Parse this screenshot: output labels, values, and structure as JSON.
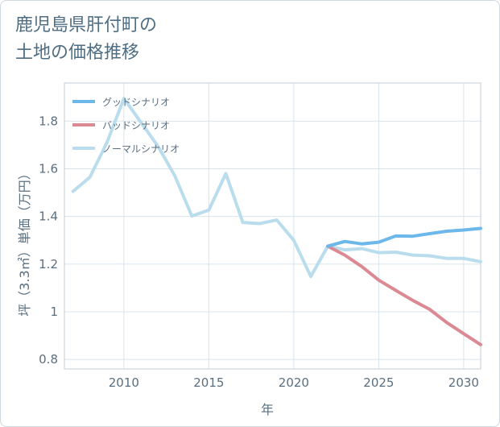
{
  "title_line1": "鹿児島県肝付町の",
  "title_line2": "土地の価格推移",
  "chart_data": {
    "type": "line",
    "title": "鹿児島県肝付町の土地の価格推移",
    "xlabel": "年",
    "ylabel": "坪（3.3㎡）単価（万円）",
    "xlim": [
      2006.5,
      2031
    ],
    "ylim": [
      0.76,
      1.96
    ],
    "xticks": [
      2010,
      2015,
      2020,
      2025,
      2030
    ],
    "xtick_labels": [
      "2010",
      "2015",
      "2020",
      "2025",
      "2030"
    ],
    "yticks": [
      0.8,
      1,
      1.2,
      1.4,
      1.6,
      1.8
    ],
    "ytick_labels": [
      "0.8",
      "1",
      "1.2",
      "1.4",
      "1.6",
      "1.8"
    ],
    "grid": true,
    "legend_position": "top-left",
    "series": [
      {
        "name": "グッドシナリオ",
        "color": "#6cb8eb",
        "x": [
          2022,
          2023,
          2024,
          2025,
          2026,
          2027,
          2028,
          2029,
          2030,
          2031
        ],
        "y": [
          1.275,
          1.295,
          1.285,
          1.292,
          1.318,
          1.317,
          1.328,
          1.338,
          1.343,
          1.35
        ]
      },
      {
        "name": "バッドシナリオ",
        "color": "#db8a93",
        "x": [
          2022,
          2023,
          2024,
          2025,
          2026,
          2027,
          2028,
          2029,
          2030,
          2031
        ],
        "y": [
          1.275,
          1.238,
          1.19,
          1.133,
          1.09,
          1.048,
          1.01,
          0.955,
          0.908,
          0.862
        ]
      },
      {
        "name": "ノーマルシナリオ",
        "color": "#b9dded",
        "x": [
          2007,
          2008,
          2009,
          2010,
          2011,
          2012,
          2013,
          2014,
          2015,
          2016,
          2017,
          2018,
          2019,
          2020,
          2021,
          2022,
          2023,
          2024,
          2025,
          2026,
          2027,
          2028,
          2029,
          2030,
          2031
        ],
        "y": [
          1.505,
          1.565,
          1.71,
          1.895,
          1.795,
          1.695,
          1.57,
          1.402,
          1.427,
          1.58,
          1.375,
          1.37,
          1.385,
          1.3,
          1.148,
          1.275,
          1.26,
          1.265,
          1.248,
          1.25,
          1.238,
          1.235,
          1.224,
          1.224,
          1.21
        ]
      }
    ]
  }
}
